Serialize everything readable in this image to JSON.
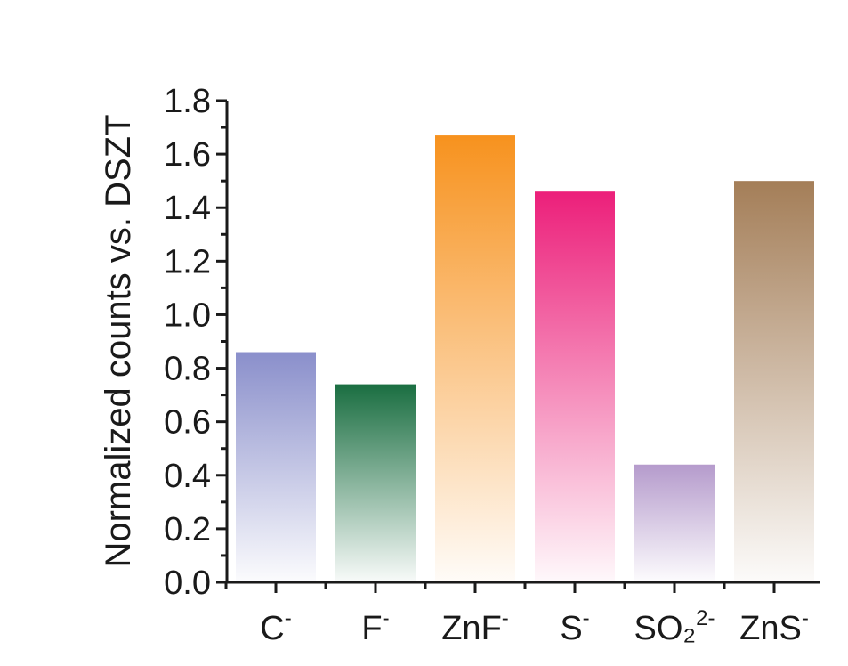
{
  "chart_data": {
    "type": "bar",
    "title": "",
    "xlabel": "",
    "ylabel": "Normalized counts vs. DSZT",
    "ylim": [
      0,
      1.8
    ],
    "yticks": [
      "0.0",
      "0.2",
      "0.4",
      "0.6",
      "0.8",
      "1.0",
      "1.2",
      "1.4",
      "1.6",
      "1.8"
    ],
    "grid": false,
    "legend": "none",
    "categories": [
      {
        "base": "C",
        "sup": "-"
      },
      {
        "base": "F",
        "sup": "-"
      },
      {
        "base": "ZnF",
        "sup": "-"
      },
      {
        "base": "S",
        "sup": "-"
      },
      {
        "base": "SO₂",
        "sup": "2-"
      },
      {
        "base": "ZnS",
        "sup": "-"
      }
    ],
    "values": [
      0.86,
      0.74,
      1.67,
      1.46,
      0.44,
      1.5
    ],
    "colors": [
      "#8a8fcb",
      "#1a6e41",
      "#f7921e",
      "#ec1f7a",
      "#b59bcc",
      "#a47e58"
    ]
  }
}
